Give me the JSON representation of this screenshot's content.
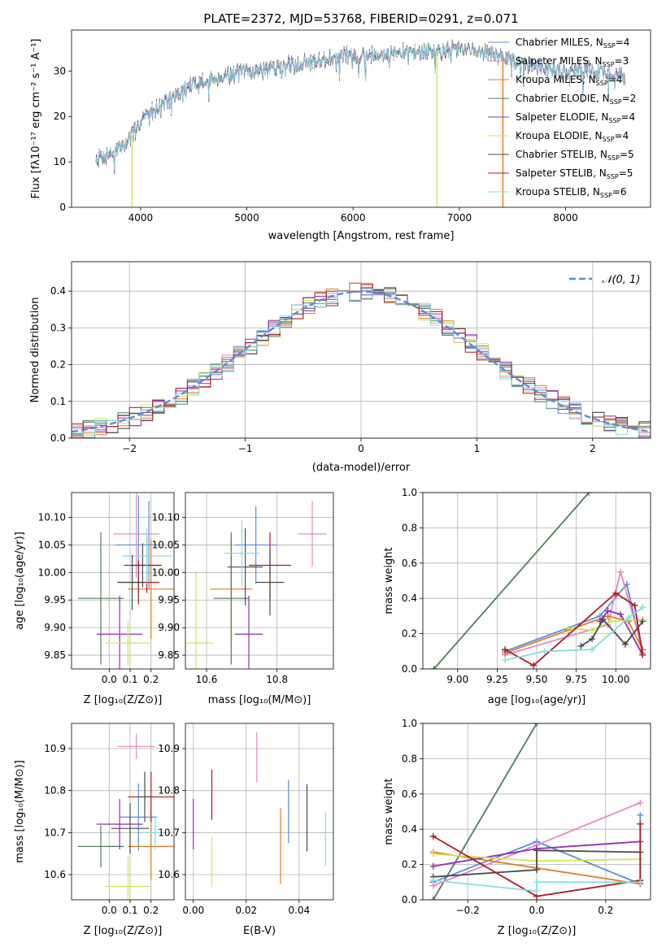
{
  "colors": {
    "chabrier_miles": "#5b8bdc",
    "salpeter_miles": "#e38bc2",
    "kroupa_miles": "#e07b23",
    "chabrier_elodie": "#4f7f5a",
    "salpeter_elodie": "#8c2eb0",
    "kroupa_elodie": "#cde65a",
    "chabrier_stelib": "#4a4a4a",
    "salpeter_stelib": "#b11a20",
    "kroupa_stelib": "#87dcdc",
    "grid": "#b0b0b0"
  },
  "chart_data": [
    {
      "id": "spectrum",
      "type": "line",
      "title": "PLATE=2372, MJD=53768, FIBERID=0291, z=0.071",
      "xlabel": "wavelength [Angstrom, rest frame]",
      "ylabel": "Flux [fλ10⁻¹⁷ erg cm⁻² s⁻¹ A⁻¹]",
      "xlim": [
        3350,
        8800
      ],
      "ylim": [
        0,
        39
      ],
      "xticks": [
        4000,
        5000,
        6000,
        7000,
        8000
      ],
      "yticks": [
        0,
        10,
        20,
        30
      ],
      "grid": false,
      "legend_position": "right",
      "continuum": [
        [
          3580,
          11
        ],
        [
          3750,
          12
        ],
        [
          3900,
          15
        ],
        [
          4000,
          19
        ],
        [
          4150,
          22
        ],
        [
          4300,
          24
        ],
        [
          4500,
          27
        ],
        [
          4800,
          29
        ],
        [
          5200,
          30.5
        ],
        [
          5600,
          32
        ],
        [
          6000,
          33.5
        ],
        [
          6500,
          34
        ],
        [
          6900,
          34.5
        ],
        [
          7200,
          34.5
        ],
        [
          7400,
          33
        ],
        [
          7700,
          31
        ],
        [
          8000,
          30
        ],
        [
          8300,
          30
        ],
        [
          8550,
          29
        ]
      ],
      "legend": [
        {
          "label": "Chabrier MILES, N",
          "sub": "SSP",
          "val": "=4",
          "color": "chabrier_miles"
        },
        {
          "label": "Salpeter MILES, N",
          "sub": "SSP",
          "val": "=3",
          "color": "salpeter_miles"
        },
        {
          "label": "Kroupa MILES, N",
          "sub": "SSP",
          "val": "=4",
          "color": "kroupa_miles"
        },
        {
          "label": "Chabrier ELODIE, N",
          "sub": "SSP",
          "val": "=2",
          "color": "chabrier_elodie"
        },
        {
          "label": "Salpeter ELODIE, N",
          "sub": "SSP",
          "val": "=4",
          "color": "salpeter_elodie"
        },
        {
          "label": "Kroupa ELODIE, N",
          "sub": "SSP",
          "val": "=4",
          "color": "kroupa_elodie"
        },
        {
          "label": "Chabrier STELIB, N",
          "sub": "SSP",
          "val": "=5",
          "color": "chabrier_stelib"
        },
        {
          "label": "Salpeter STELIB, N",
          "sub": "SSP",
          "val": "=5",
          "color": "salpeter_stelib"
        },
        {
          "label": "Kroupa STELIB, N",
          "sub": "SSP",
          "val": "=6",
          "color": "kroupa_stelib"
        }
      ]
    },
    {
      "id": "residuals",
      "type": "line",
      "xlabel": "(data-model)/error",
      "ylabel": "Normed distribution",
      "xlim": [
        -2.5,
        2.5
      ],
      "ylim": [
        0,
        0.48
      ],
      "xticks": [
        -2,
        -1,
        0,
        1,
        2
      ],
      "yticks": [
        0.0,
        0.1,
        0.2,
        0.3,
        0.4
      ],
      "grid": true,
      "legend_position": "top-right",
      "legend_label": "𝒩(0, 1)",
      "reference_curve": "gaussian",
      "reference_color": "#5b8bdc",
      "bin_width": 0.1
    },
    {
      "id": "age_vs_Z",
      "type": "scatter",
      "xlabel": "Z [log₁₀(Z/Z⊙)]",
      "ylabel": "age  [log₁₀(age/yr)]",
      "xlim": [
        -0.18,
        0.31
      ],
      "ylim": [
        9.825,
        10.145
      ],
      "xticks": [
        0.0,
        0.1,
        0.2
      ],
      "yticks": [
        9.85,
        9.9,
        9.95,
        10.0,
        10.05,
        10.1
      ],
      "grid": true,
      "points": [
        {
          "x": 0.14,
          "y": 10.05,
          "xerr": 0.11,
          "yerr": 0.09,
          "color": "chabrier_miles"
        },
        {
          "x": 0.19,
          "y": 10.05,
          "xerr": 0.05,
          "yerr": 0.08,
          "color": "chabrier_miles"
        },
        {
          "x": 0.13,
          "y": 10.07,
          "xerr": 0.11,
          "yerr": 0.08,
          "color": "salpeter_miles"
        },
        {
          "x": 0.2,
          "y": 9.97,
          "xerr": 0.11,
          "yerr": 0.09,
          "color": "kroupa_miles"
        },
        {
          "x": -0.04,
          "y": 9.953,
          "xerr": 0.11,
          "yerr": 0.12,
          "color": "chabrier_elodie"
        },
        {
          "x": 0.05,
          "y": 9.888,
          "xerr": 0.11,
          "yerr": 0.07,
          "color": "salpeter_elodie"
        },
        {
          "x": 0.09,
          "y": 9.872,
          "xerr": 0.11,
          "yerr": 0.04,
          "color": "kroupa_elodie"
        },
        {
          "x": 0.16,
          "y": 10.013,
          "xerr": 0.09,
          "yerr": 0.04,
          "color": "chabrier_stelib"
        },
        {
          "x": 0.18,
          "y": 10.013,
          "xerr": 0.07,
          "yerr": 0.05,
          "color": "salpeter_stelib"
        },
        {
          "x": 0.14,
          "y": 9.982,
          "xerr": 0.1,
          "yerr": 0.04,
          "color": "salpeter_stelib"
        },
        {
          "x": 0.18,
          "y": 10.03,
          "xerr": 0.12,
          "yerr": 0.05,
          "color": "kroupa_stelib"
        },
        {
          "x": 0.11,
          "y": 9.982,
          "xerr": 0.07,
          "yerr": 0.05,
          "color": "chabrier_stelib"
        }
      ]
    },
    {
      "id": "age_vs_mass",
      "type": "scatter",
      "xlabel": "mass [log₁₀(M/M⊙)]",
      "xlim": [
        10.54,
        10.96
      ],
      "ylim": [
        9.825,
        10.145
      ],
      "xticks": [
        10.6,
        10.8
      ],
      "yticks": [
        9.85,
        9.9,
        9.95,
        10.0,
        10.05,
        10.1
      ],
      "grid": true,
      "points": [
        {
          "x": 10.74,
          "y": 10.05,
          "xerr": 0.06,
          "yerr": 0.07,
          "color": "chabrier_miles"
        },
        {
          "x": 10.9,
          "y": 10.07,
          "xerr": 0.04,
          "yerr": 0.06,
          "color": "salpeter_miles"
        },
        {
          "x": 10.67,
          "y": 9.97,
          "xerr": 0.06,
          "yerr": 0.09,
          "color": "kroupa_miles"
        },
        {
          "x": 10.67,
          "y": 9.953,
          "xerr": 0.05,
          "yerr": 0.12,
          "color": "chabrier_elodie"
        },
        {
          "x": 10.72,
          "y": 9.888,
          "xerr": 0.04,
          "yerr": 0.07,
          "color": "salpeter_elodie"
        },
        {
          "x": 10.57,
          "y": 9.872,
          "xerr": 0.05,
          "yerr": 0.13,
          "color": "kroupa_elodie"
        },
        {
          "x": 10.71,
          "y": 10.01,
          "xerr": 0.05,
          "yerr": 0.07,
          "color": "chabrier_stelib"
        },
        {
          "x": 10.78,
          "y": 10.013,
          "xerr": 0.06,
          "yerr": 0.06,
          "color": "salpeter_stelib"
        },
        {
          "x": 10.7,
          "y": 10.035,
          "xerr": 0.05,
          "yerr": 0.06,
          "color": "kroupa_stelib"
        },
        {
          "x": 10.78,
          "y": 9.982,
          "xerr": 0.04,
          "yerr": 0.06,
          "color": "chabrier_stelib"
        }
      ]
    },
    {
      "id": "massweight_vs_age",
      "type": "line",
      "xlabel": "age  [log₁₀(age/yr)]",
      "ylabel": "mass weight",
      "xlim": [
        8.78,
        10.22
      ],
      "ylim": [
        0,
        1.0
      ],
      "xticks": [
        9.0,
        9.25,
        9.5,
        9.75,
        10.0
      ],
      "yticks": [
        0.0,
        0.2,
        0.4,
        0.6,
        0.8,
        1.0
      ],
      "grid": true,
      "series": [
        {
          "color": "chabrier_elodie",
          "x": [
            8.85,
            9.83
          ],
          "y": [
            0.0,
            1.0
          ]
        },
        {
          "color": "chabrier_miles",
          "x": [
            9.3,
            9.9,
            10.07,
            10.17
          ],
          "y": [
            0.1,
            0.3,
            0.48,
            0.09
          ]
        },
        {
          "color": "salpeter_miles",
          "x": [
            9.3,
            9.95,
            10.03,
            10.17
          ],
          "y": [
            0.08,
            0.25,
            0.55,
            0.11
          ]
        },
        {
          "color": "kroupa_miles",
          "x": [
            9.3,
            9.7,
            9.95,
            10.08,
            10.17
          ],
          "y": [
            0.09,
            0.22,
            0.3,
            0.27,
            0.11
          ]
        },
        {
          "color": "salpeter_elodie",
          "x": [
            9.9,
            9.95,
            10.03,
            10.17
          ],
          "y": [
            0.27,
            0.33,
            0.31,
            0.08
          ]
        },
        {
          "color": "kroupa_elodie",
          "x": [
            9.7,
            9.85,
            9.97,
            10.17
          ],
          "y": [
            0.23,
            0.22,
            0.27,
            0.28
          ]
        },
        {
          "color": "chabrier_stelib",
          "x": [
            9.78,
            9.85,
            9.92,
            10.06,
            10.17
          ],
          "y": [
            0.13,
            0.17,
            0.28,
            0.14,
            0.27
          ]
        },
        {
          "color": "salpeter_stelib",
          "x": [
            9.3,
            9.48,
            10.0,
            10.12,
            10.17
          ],
          "y": [
            0.11,
            0.02,
            0.43,
            0.36,
            0.08
          ]
        },
        {
          "color": "kroupa_stelib",
          "x": [
            9.3,
            9.55,
            9.85,
            10.08,
            10.17
          ],
          "y": [
            0.05,
            0.1,
            0.11,
            0.29,
            0.35
          ]
        }
      ]
    },
    {
      "id": "mass_vs_Z",
      "type": "scatter",
      "xlabel": "Z [log₁₀(Z/Z⊙)]",
      "ylabel": "mass [log₁₀(M/M⊙)]",
      "xlim": [
        -0.18,
        0.31
      ],
      "ylim": [
        10.54,
        10.96
      ],
      "xticks": [
        0.0,
        0.1,
        0.2
      ],
      "yticks": [
        10.6,
        10.7,
        10.8,
        10.9
      ],
      "grid": true,
      "points": [
        {
          "x": 0.14,
          "y": 10.737,
          "xerr": 0.09,
          "yerr": 0.08,
          "color": "chabrier_miles"
        },
        {
          "x": 0.13,
          "y": 10.905,
          "xerr": 0.09,
          "yerr": 0.03,
          "color": "salpeter_miles"
        },
        {
          "x": 0.2,
          "y": 10.667,
          "xerr": 0.11,
          "yerr": 0.08,
          "color": "kroupa_miles"
        },
        {
          "x": -0.04,
          "y": 10.667,
          "xerr": 0.11,
          "yerr": 0.05,
          "color": "chabrier_elodie"
        },
        {
          "x": 0.05,
          "y": 10.72,
          "xerr": 0.11,
          "yerr": 0.06,
          "color": "salpeter_elodie"
        },
        {
          "x": 0.09,
          "y": 10.572,
          "xerr": 0.11,
          "yerr": 0.07,
          "color": "kroupa_elodie"
        },
        {
          "x": 0.1,
          "y": 10.71,
          "xerr": 0.09,
          "yerr": 0.06,
          "color": "chabrier_stelib"
        },
        {
          "x": 0.2,
          "y": 10.785,
          "xerr": 0.11,
          "yerr": 0.06,
          "color": "salpeter_stelib"
        },
        {
          "x": 0.22,
          "y": 10.7,
          "xerr": 0.05,
          "yerr": 0.04,
          "color": "kroupa_stelib"
        },
        {
          "x": 0.17,
          "y": 10.785,
          "xerr": 0.04,
          "yerr": 0.06,
          "color": "chabrier_stelib"
        }
      ]
    },
    {
      "id": "mass_vs_ebv",
      "type": "scatter",
      "xlabel": "E(B-V)",
      "xlim": [
        -0.003,
        0.053
      ],
      "ylim": [
        10.54,
        10.96
      ],
      "xticks": [
        0.0,
        0.02,
        0.04
      ],
      "yticks": [
        10.6,
        10.7,
        10.8,
        10.9
      ],
      "grid": true,
      "points": [
        {
          "x": 0.0,
          "y": 10.72,
          "xerr": 0.0,
          "yerr": 0.06,
          "color": "salpeter_elodie"
        },
        {
          "x": 0.007,
          "y": 10.79,
          "xerr": 0.0,
          "yerr": 0.06,
          "color": "salpeter_stelib"
        },
        {
          "x": 0.007,
          "y": 10.63,
          "xerr": 0.0,
          "yerr": 0.06,
          "color": "kroupa_elodie"
        },
        {
          "x": 0.024,
          "y": 10.88,
          "xerr": 0.0,
          "yerr": 0.06,
          "color": "salpeter_miles"
        },
        {
          "x": 0.033,
          "y": 10.668,
          "xerr": 0.0,
          "yerr": 0.09,
          "color": "kroupa_miles"
        },
        {
          "x": 0.036,
          "y": 10.75,
          "xerr": 0.0,
          "yerr": 0.075,
          "color": "chabrier_miles"
        },
        {
          "x": 0.043,
          "y": 10.735,
          "xerr": 0.0,
          "yerr": 0.08,
          "color": "chabrier_stelib"
        },
        {
          "x": 0.05,
          "y": 10.685,
          "xerr": 0.0,
          "yerr": 0.065,
          "color": "kroupa_stelib"
        }
      ]
    },
    {
      "id": "massweight_vs_Z",
      "type": "line",
      "xlabel": "Z [log₁₀(Z/Z⊙)]",
      "ylabel": "mass weight",
      "xlim": [
        -0.33,
        0.33
      ],
      "ylim": [
        0,
        1.0
      ],
      "xticks": [
        -0.2,
        0.0,
        0.2
      ],
      "yticks": [
        0.0,
        0.2,
        0.4,
        0.6,
        0.8,
        1.0
      ],
      "grid": true,
      "series": [
        {
          "color": "chabrier_elodie",
          "x": [
            -0.3,
            0.0
          ],
          "y": [
            0.0,
            1.0
          ]
        },
        {
          "color": "chabrier_miles",
          "x": [
            -0.3,
            0.0,
            0.3,
            0.3
          ],
          "y": [
            0.1,
            0.33,
            0.09,
            0.48
          ]
        },
        {
          "color": "salpeter_miles",
          "x": [
            -0.3,
            0.0,
            0.3
          ],
          "y": [
            0.08,
            0.31,
            0.55
          ]
        },
        {
          "color": "kroupa_miles",
          "x": [
            -0.3,
            0.0,
            0.3
          ],
          "y": [
            0.27,
            0.18,
            0.09
          ]
        },
        {
          "color": "salpeter_elodie",
          "x": [
            -0.3,
            0.0,
            0.3
          ],
          "y": [
            0.19,
            0.29,
            0.33
          ]
        },
        {
          "color": "kroupa_elodie",
          "x": [
            -0.3,
            0.0,
            0.3
          ],
          "y": [
            0.26,
            0.22,
            0.23
          ]
        },
        {
          "color": "chabrier_stelib",
          "x": [
            -0.3,
            0.0,
            0.0,
            0.3
          ],
          "y": [
            0.13,
            0.17,
            0.28,
            0.27
          ]
        },
        {
          "color": "salpeter_stelib",
          "x": [
            -0.3,
            0.0,
            0.3,
            0.3
          ],
          "y": [
            0.36,
            0.02,
            0.11,
            0.43
          ]
        },
        {
          "color": "kroupa_stelib",
          "x": [
            -0.3,
            -0.0,
            0.0,
            0.3
          ],
          "y": [
            0.11,
            0.05,
            0.1,
            0.1
          ]
        }
      ]
    }
  ]
}
